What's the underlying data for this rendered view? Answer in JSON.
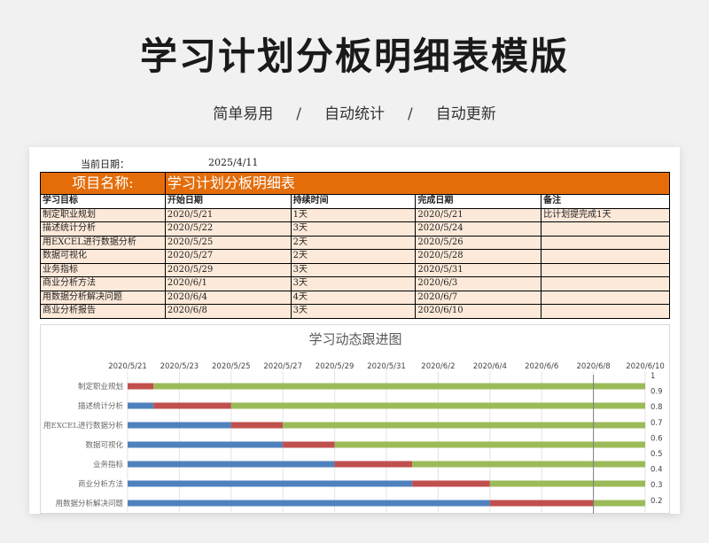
{
  "header": {
    "title": "学习计划分板明细表模版",
    "tags": [
      "简单易用",
      "自动统计",
      "自动更新"
    ],
    "separator": "/"
  },
  "sheet": {
    "current_date_label": "当前日期：",
    "current_date_value": "2025/4/11",
    "project_label": "项目名称:",
    "project_value": "学习计划分板明细表",
    "columns": [
      "学习目标",
      "开始日期",
      "持续时间",
      "完成日期",
      "备注"
    ],
    "rows": [
      [
        "制定职业规划",
        "2020/5/21",
        "1天",
        "2020/5/21",
        "比计划提完成1天"
      ],
      [
        "描述统计分析",
        "2020/5/22",
        "3天",
        "2020/5/24",
        ""
      ],
      [
        "用EXCEL进行数据分析",
        "2020/5/25",
        "2天",
        "2020/5/26",
        ""
      ],
      [
        "数据可视化",
        "2020/5/27",
        "2天",
        "2020/5/28",
        ""
      ],
      [
        "业务指标",
        "2020/5/29",
        "3天",
        "2020/5/31",
        ""
      ],
      [
        "商业分析方法",
        "2020/6/1",
        "3天",
        "2020/6/3",
        ""
      ],
      [
        "用数据分析解决问题",
        "2020/6/4",
        "4天",
        "2020/6/7",
        ""
      ],
      [
        "商业分析报告",
        "2020/6/8",
        "3天",
        "2020/6/10",
        ""
      ]
    ]
  },
  "chart_data": {
    "type": "bar",
    "title": "学习动态跟进图",
    "x_ticks": [
      "2020/5/21",
      "2020/5/23",
      "2020/5/25",
      "2020/5/27",
      "2020/5/29",
      "2020/5/31",
      "2020/6/2",
      "2020/6/4",
      "2020/6/6",
      "2020/6/8",
      "2020/6/10"
    ],
    "x_range": [
      "2020/5/21",
      "2020/6/10"
    ],
    "categories": [
      "制定职业规划",
      "描述统计分析",
      "用EXCEL进行数据分析",
      "数据可视化",
      "业务指标",
      "商业分析方法",
      "用数据分析解决问题"
    ],
    "series": [
      {
        "color": "#4f81bd",
        "values": [
          0,
          1,
          4,
          6,
          8,
          11,
          14
        ]
      },
      {
        "color": "#c0504d",
        "values": [
          1,
          3,
          2,
          2,
          3,
          3,
          4
        ]
      },
      {
        "color": "#9bbb59",
        "values": [
          19,
          16,
          14,
          12,
          9,
          6,
          2
        ]
      }
    ],
    "secondary_axis_ticks": [
      "1",
      "0.9",
      "0.8",
      "0.7",
      "0.6",
      "0.5",
      "0.4",
      "0.3",
      "0.2"
    ],
    "today_marker": "2020/6/8"
  }
}
